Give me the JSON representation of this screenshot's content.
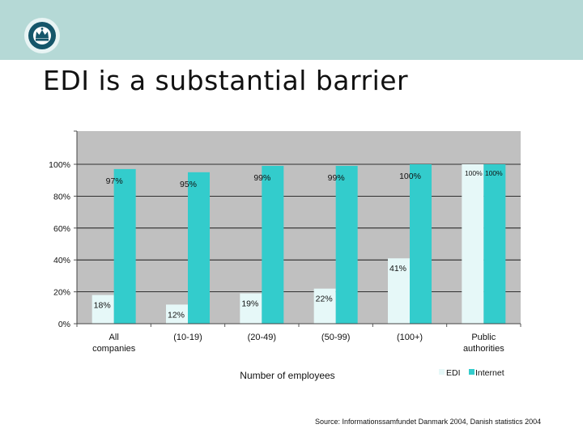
{
  "slide": {
    "title": "EDI is a substantial barrier",
    "source": "Source: Informationssamfundet Danmark 2004, Danish statistics 2004"
  },
  "colors": {
    "header_band": "#b5d9d6",
    "plot_background": "#c0c0c0",
    "edi": "#e6f8f8",
    "internet": "#33cccc",
    "logo_circle": "#15566a"
  },
  "icons": [
    "crown-logo-icon"
  ],
  "chart_data": {
    "type": "bar",
    "title": "",
    "xlabel": "Number of employees",
    "ylabel": "",
    "ylim": [
      0,
      100
    ],
    "yticks": [
      "0%",
      "20%",
      "40%",
      "60%",
      "80%",
      "100%"
    ],
    "categories": [
      "All companies",
      "(10-19)",
      "(20-49)",
      "(50-99)",
      "(100+)",
      "Public authorities"
    ],
    "series": [
      {
        "name": "EDI",
        "values": [
          18,
          12,
          19,
          22,
          41,
          100
        ],
        "labels": [
          "18%",
          "12%",
          "19%",
          "22%",
          "41%",
          "100%"
        ]
      },
      {
        "name": "Internet",
        "values": [
          97,
          95,
          99,
          99,
          100,
          100
        ],
        "labels": [
          "97%",
          "95%",
          "99%",
          "99%",
          "100%",
          "100%"
        ]
      }
    ],
    "grid": true,
    "legend_position": "bottom-right"
  }
}
